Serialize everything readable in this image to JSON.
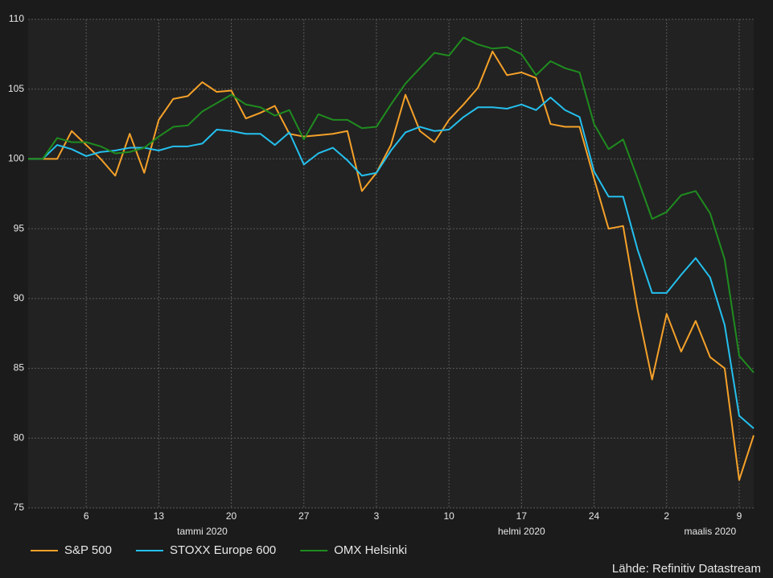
{
  "chart_data": {
    "type": "line",
    "categories": [
      null,
      null,
      null,
      null,
      "6",
      null,
      null,
      null,
      null,
      "13",
      null,
      null,
      null,
      null,
      "20",
      null,
      null,
      null,
      null,
      "27",
      null,
      null,
      null,
      null,
      "3",
      null,
      null,
      null,
      null,
      "10",
      null,
      null,
      null,
      null,
      "17",
      null,
      null,
      null,
      null,
      "24",
      null,
      null,
      null,
      null,
      "2",
      null,
      null,
      null,
      null,
      "9",
      null
    ],
    "month_labels": [
      null,
      null,
      null,
      null,
      null,
      null,
      null,
      null,
      null,
      null,
      null,
      null,
      "tammi 2020",
      null,
      null,
      null,
      null,
      null,
      null,
      null,
      null,
      null,
      null,
      null,
      null,
      null,
      null,
      null,
      null,
      null,
      null,
      null,
      null,
      null,
      "helmi 2020",
      null,
      null,
      null,
      null,
      null,
      null,
      null,
      null,
      null,
      null,
      null,
      null,
      "maalis 2020",
      null,
      null,
      null
    ],
    "series": [
      {
        "name": "S&P 500",
        "color": "#f5a129",
        "values": [
          100,
          100,
          100,
          102,
          101,
          100,
          98.8,
          101.8,
          99,
          102.8,
          104.3,
          104.5,
          105.5,
          104.8,
          104.9,
          102.9,
          103.3,
          103.8,
          101.8,
          101.6,
          101.7,
          101.8,
          102,
          97.7,
          99,
          101,
          104.6,
          102,
          101.2,
          102.8,
          103.9,
          105.1,
          107.7,
          106,
          106.2,
          105.8,
          102.5,
          102.3,
          102.3,
          98.6,
          95,
          95.2,
          89.2,
          84.2,
          88.9,
          86.2,
          88.4,
          85.8,
          85,
          77,
          80.2
        ]
      },
      {
        "name": "STOXX Europe 600",
        "color": "#24c0ee",
        "values": [
          100,
          100,
          101,
          100.7,
          100.2,
          100.5,
          100.6,
          100.8,
          100.8,
          100.6,
          100.9,
          100.9,
          101.1,
          102.1,
          102,
          101.8,
          101.8,
          101,
          101.9,
          99.6,
          100.4,
          100.8,
          99.9,
          98.8,
          99,
          100.6,
          101.9,
          102.3,
          102,
          102.1,
          103,
          103.7,
          103.7,
          103.6,
          103.9,
          103.5,
          104.4,
          103.5,
          103,
          99.1,
          97.3,
          97.3,
          93.5,
          90.4,
          90.4,
          91.7,
          92.9,
          91.5,
          88.1,
          81.6,
          80.7
        ]
      },
      {
        "name": "OMX Helsinki",
        "color": "#1f8c1f",
        "values": [
          100,
          100,
          101.5,
          101.2,
          101.2,
          100.9,
          100.4,
          100.5,
          100.8,
          101.6,
          102.3,
          102.4,
          103.4,
          104,
          104.6,
          103.9,
          103.7,
          103.1,
          103.5,
          101.4,
          103.2,
          102.8,
          102.8,
          102.2,
          102.3,
          103.9,
          105.4,
          106.5,
          107.6,
          107.4,
          108.7,
          108.2,
          107.9,
          108,
          107.5,
          106,
          107,
          106.5,
          106.2,
          102.5,
          100.7,
          101.4,
          98.6,
          95.7,
          96.2,
          97.4,
          97.7,
          96.1,
          92.8,
          85.9,
          84.7
        ]
      }
    ],
    "ylim": [
      75,
      110
    ],
    "yticks": [
      75,
      80,
      85,
      90,
      95,
      100,
      105,
      110
    ],
    "grid": true,
    "source": "Lähde: Refinitiv Datastream"
  }
}
